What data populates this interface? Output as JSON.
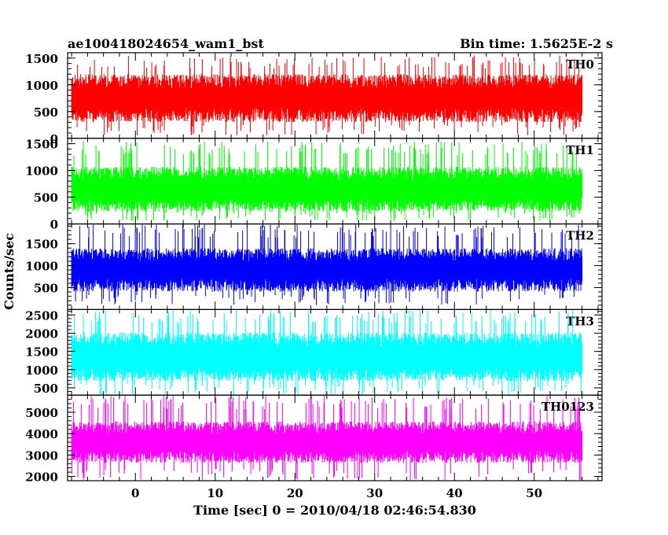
{
  "header": {
    "title": "ae100418024654_wam1_bst",
    "bin_time": "Bin time: 1.5625E-2 s"
  },
  "chart_data": {
    "type": "line",
    "title": "ae100418024654_wam1_bst",
    "subtitle": "Bin time: 1.5625E-2 s",
    "xlabel": "Time [sec] 0 = 2010/04/18 02:46:54.830",
    "ylabel": "Counts/sec",
    "x_range": [
      -8.5,
      58.5
    ],
    "data_x_range": [
      -8.0,
      56.0
    ],
    "x_ticks": [
      0,
      10,
      20,
      30,
      40,
      50
    ],
    "grid": false,
    "panels": [
      {
        "name": "TH0",
        "color": "#ff0000",
        "ylim": [
          0,
          1600
        ],
        "y_ticks": [
          0,
          500,
          1000,
          1500
        ],
        "baseline": 750,
        "spread": 300,
        "max": 1550,
        "min": 50
      },
      {
        "name": "TH1",
        "color": "#00ff00",
        "ylim": [
          0,
          1600
        ],
        "y_ticks": [
          0,
          500,
          1000,
          1500
        ],
        "baseline": 650,
        "spread": 280,
        "max": 1550,
        "min": 50
      },
      {
        "name": "TH2",
        "color": "#0000ff",
        "ylim": [
          0,
          1950
        ],
        "y_ticks": [
          500,
          1000,
          1500
        ],
        "baseline": 900,
        "spread": 330,
        "max": 1950,
        "min": 100
      },
      {
        "name": "TH3",
        "color": "#00ffff",
        "ylim": [
          300,
          2650
        ],
        "y_ticks": [
          500,
          1000,
          1500,
          2000,
          2500
        ],
        "baseline": 1350,
        "spread": 450,
        "max": 2650,
        "min": 300
      },
      {
        "name": "TH0123",
        "color": "#ff00ff",
        "ylim": [
          1800,
          5800
        ],
        "y_ticks": [
          2000,
          3000,
          4000,
          5000
        ],
        "baseline": 3600,
        "spread": 650,
        "max": 5800,
        "min": 1800
      }
    ]
  }
}
